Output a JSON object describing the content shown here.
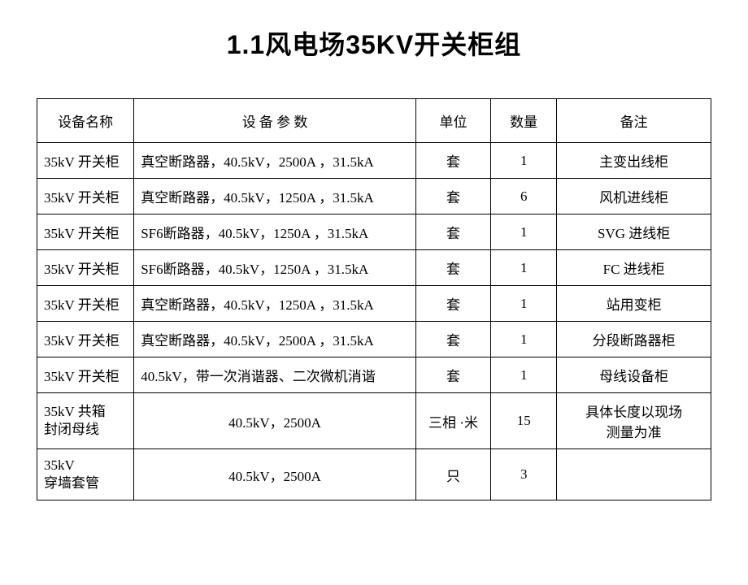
{
  "title": "1.1风电场35KV开关柜组",
  "header": {
    "name": "设备名称",
    "params": "设 备 参 数",
    "unit": "单位",
    "qty": "数量",
    "remark": "备注"
  },
  "rows": [
    {
      "name": "35kV 开关柜",
      "params": "真空断路器，40.5kV，2500A ，31.5kA",
      "unit": "套",
      "qty": "1",
      "remark": "主变出线柜",
      "paramsCenter": false,
      "nameWrap": false
    },
    {
      "name": "35kV 开关柜",
      "params": "真空断路器，40.5kV，1250A ，31.5kA",
      "unit": "套",
      "qty": "6",
      "remark": "风机进线柜",
      "paramsCenter": false,
      "nameWrap": false
    },
    {
      "name": "35kV 开关柜",
      "params": "SF6断路器，40.5kV，1250A ，31.5kA",
      "unit": "套",
      "qty": "1",
      "remark": "SVG 进线柜",
      "paramsCenter": false,
      "nameWrap": false
    },
    {
      "name": "35kV 开关柜",
      "params": "SF6断路器，40.5kV，1250A ，31.5kA",
      "unit": "套",
      "qty": "1",
      "remark": "FC 进线柜",
      "paramsCenter": false,
      "nameWrap": false
    },
    {
      "name": "35kV 开关柜",
      "params": "真空断路器，40.5kV，1250A ，31.5kA",
      "unit": "套",
      "qty": "1",
      "remark": "站用变柜",
      "paramsCenter": false,
      "nameWrap": false
    },
    {
      "name": "35kV 开关柜",
      "params": "真空断路器，40.5kV，2500A ，31.5kA",
      "unit": "套",
      "qty": "1",
      "remark": "分段断路器柜",
      "paramsCenter": false,
      "nameWrap": false
    },
    {
      "name": "35kV 开关柜",
      "params": "40.5kV，带一次消谐器、二次微机消谐",
      "unit": "套",
      "qty": "1",
      "remark": "母线设备柜",
      "paramsCenter": false,
      "nameWrap": false
    },
    {
      "name": "35kV 共箱\n封闭母线",
      "params": "40.5kV，2500A",
      "unit": "三相 ·米",
      "qty": "15",
      "remark": "具体长度以现场\n测量为准",
      "paramsCenter": true,
      "nameWrap": true
    },
    {
      "name": "35kV\n穿墙套管",
      "params": "40.5kV，2500A",
      "unit": "只",
      "qty": "3",
      "remark": "",
      "paramsCenter": true,
      "nameWrap": true
    }
  ],
  "style": {
    "background_color": "#ffffff",
    "text_color": "#000000",
    "border_color": "#000000",
    "title_fontsize": 32,
    "cell_fontsize": 17,
    "col_widths": {
      "name": 110,
      "params": 320,
      "unit": 85,
      "qty": 75,
      "remark": 175
    }
  }
}
